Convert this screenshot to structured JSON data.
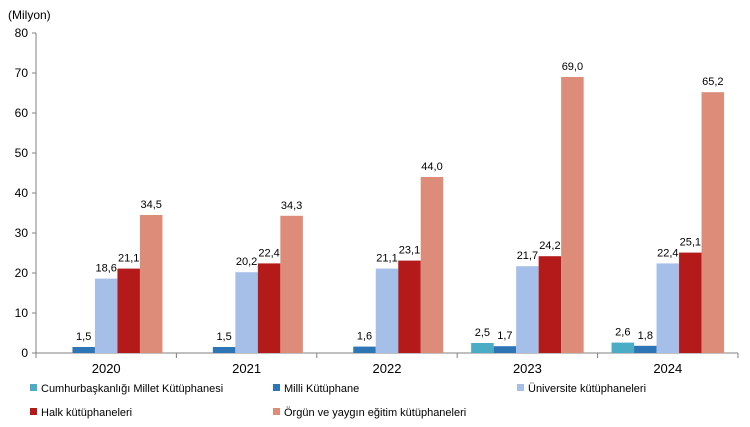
{
  "chart_data": {
    "type": "bar",
    "unit_label": "(Milyon)",
    "categories": [
      "2020",
      "2021",
      "2022",
      "2023",
      "2024"
    ],
    "ylim": [
      0,
      80
    ],
    "yticks": [
      0,
      10,
      20,
      30,
      40,
      50,
      60,
      70,
      80
    ],
    "grid": false,
    "legend_position": "bottom",
    "series": [
      {
        "name": "Cumhurbaşkanlığı Millet Kütüphanesi",
        "color": "#4bacc6",
        "values": [
          null,
          null,
          null,
          2.5,
          2.6
        ],
        "labels": [
          "",
          "",
          "",
          "2,5",
          "2,6"
        ]
      },
      {
        "name": "Milli Kütüphane",
        "color": "#2e75b6",
        "values": [
          1.5,
          1.5,
          1.6,
          1.7,
          1.8
        ],
        "labels": [
          "1,5",
          "1,5",
          "1,6",
          "1,7",
          "1,8"
        ]
      },
      {
        "name": "Üniversite kütüphaneleri",
        "color": "#a6bfe8",
        "values": [
          18.6,
          20.2,
          21.1,
          21.7,
          22.4
        ],
        "labels": [
          "18,6",
          "20,2",
          "21,1",
          "21,7",
          "22,4"
        ]
      },
      {
        "name": "Halk kütüphaneleri",
        "color": "#b51a1a",
        "values": [
          21.1,
          22.4,
          23.1,
          24.2,
          25.1
        ],
        "labels": [
          "21,1",
          "22,4",
          "23,1",
          "24,2",
          "25,1"
        ]
      },
      {
        "name": "Örgün ve yaygın eğitim kütüphaneleri",
        "color": "#dc8c78",
        "values": [
          34.5,
          34.3,
          44.0,
          69.0,
          65.2
        ],
        "labels": [
          "34,5",
          "34,3",
          "44,0",
          "69,0",
          "65,2"
        ]
      }
    ]
  }
}
